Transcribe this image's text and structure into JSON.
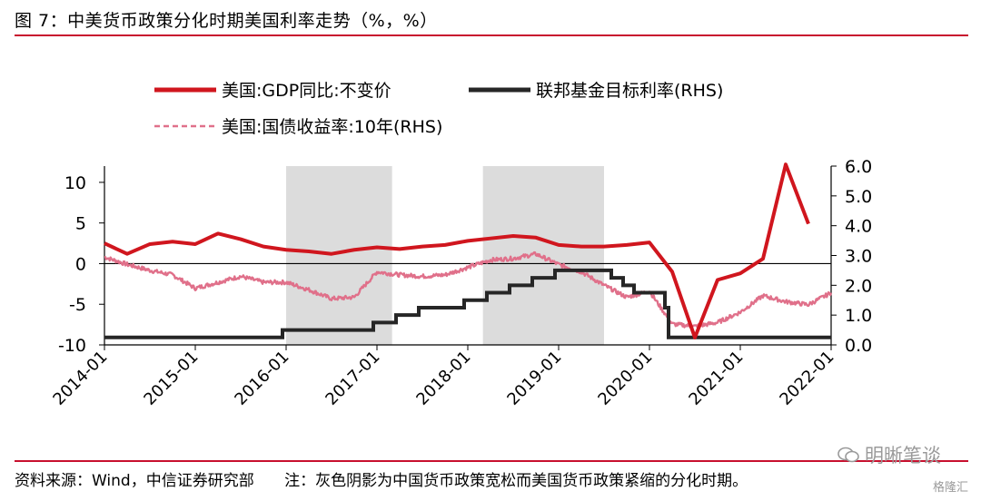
{
  "title": "图 7：中美货币政策分化时期美国利率走势（%，%）",
  "footer": {
    "source": "资料来源：Wind，中信证券研究部",
    "note": "注：灰色阴影为中国货币政策宽松而美国货币政策紧缩的分化时期。"
  },
  "watermark": {
    "text": "明晰笔谈",
    "sub": "格隆汇"
  },
  "colors": {
    "gdp": "#d0161e",
    "ffr": "#262626",
    "treasury": "#e0708a",
    "shade": "#dcdcdc",
    "rule": "#c8102e"
  },
  "chart_data": {
    "type": "line",
    "x_ticks": [
      "2014-01",
      "2015-01",
      "2016-01",
      "2017-01",
      "2018-01",
      "2019-01",
      "2020-01",
      "2021-01",
      "2022-01"
    ],
    "y_left": {
      "ticks": [
        "-10",
        "-5",
        "0",
        "5",
        "10"
      ],
      "range": [
        -10,
        12
      ]
    },
    "y_right": {
      "ticks": [
        "0.0",
        "1.0",
        "2.0",
        "3.0",
        "4.0",
        "5.0",
        "6.0"
      ],
      "range": [
        0,
        6
      ]
    },
    "shaded_periods": [
      [
        "2016-01",
        "2017-03"
      ],
      [
        "2018-03",
        "2019-07"
      ]
    ],
    "legend": [
      "美国:GDP同比:不变价",
      "联邦基金目标利率(RHS)",
      "美国:国债收益率:10年(RHS)"
    ],
    "series": [
      {
        "name": "美国:GDP同比:不变价",
        "axis": "left",
        "style": "solid-thick",
        "x": [
          2014.0,
          2014.25,
          2014.5,
          2014.75,
          2015.0,
          2015.25,
          2015.5,
          2015.75,
          2016.0,
          2016.25,
          2016.5,
          2016.75,
          2017.0,
          2017.25,
          2017.5,
          2017.75,
          2018.0,
          2018.25,
          2018.5,
          2018.75,
          2019.0,
          2019.25,
          2019.5,
          2019.75,
          2020.0,
          2020.25,
          2020.5,
          2020.75,
          2021.0,
          2021.25,
          2021.5,
          2021.75
        ],
        "values": [
          2.5,
          1.2,
          2.4,
          2.7,
          2.4,
          3.7,
          3.0,
          2.1,
          1.7,
          1.5,
          1.2,
          1.7,
          2.0,
          1.8,
          2.1,
          2.3,
          2.8,
          3.1,
          3.4,
          3.2,
          2.3,
          2.1,
          2.1,
          2.3,
          2.6,
          -1.0,
          -9.1,
          -2.0,
          -1.2,
          0.6,
          12.2,
          4.9
        ]
      },
      {
        "name": "联邦基金目标利率(RHS)",
        "axis": "right",
        "style": "step",
        "x": [
          2014.0,
          2015.96,
          2016.96,
          2017.21,
          2017.46,
          2017.96,
          2018.21,
          2018.46,
          2018.71,
          2018.96,
          2019.58,
          2019.71,
          2019.83,
          2020.17,
          2020.21,
          2022.0
        ],
        "values": [
          0.25,
          0.5,
          0.75,
          1.0,
          1.25,
          1.5,
          1.75,
          2.0,
          2.25,
          2.5,
          2.25,
          2.0,
          1.75,
          1.25,
          0.25,
          0.25
        ]
      },
      {
        "name": "美国:国债收益率:10年(RHS)",
        "axis": "right",
        "style": "dashed-noisy",
        "x": [
          2014.0,
          2014.25,
          2014.5,
          2014.75,
          2015.0,
          2015.25,
          2015.5,
          2015.75,
          2016.0,
          2016.25,
          2016.5,
          2016.75,
          2017.0,
          2017.25,
          2017.5,
          2017.75,
          2018.0,
          2018.25,
          2018.5,
          2018.75,
          2019.0,
          2019.25,
          2019.5,
          2019.75,
          2020.0,
          2020.25,
          2020.5,
          2020.75,
          2021.0,
          2021.25,
          2021.5,
          2021.75,
          2022.0
        ],
        "values": [
          2.95,
          2.7,
          2.5,
          2.35,
          1.9,
          2.1,
          2.3,
          2.1,
          2.1,
          1.85,
          1.55,
          1.6,
          2.45,
          2.35,
          2.3,
          2.35,
          2.6,
          2.85,
          2.9,
          3.05,
          2.7,
          2.45,
          2.0,
          1.6,
          1.8,
          0.7,
          0.62,
          0.75,
          1.1,
          1.65,
          1.45,
          1.35,
          1.75
        ]
      }
    ]
  }
}
